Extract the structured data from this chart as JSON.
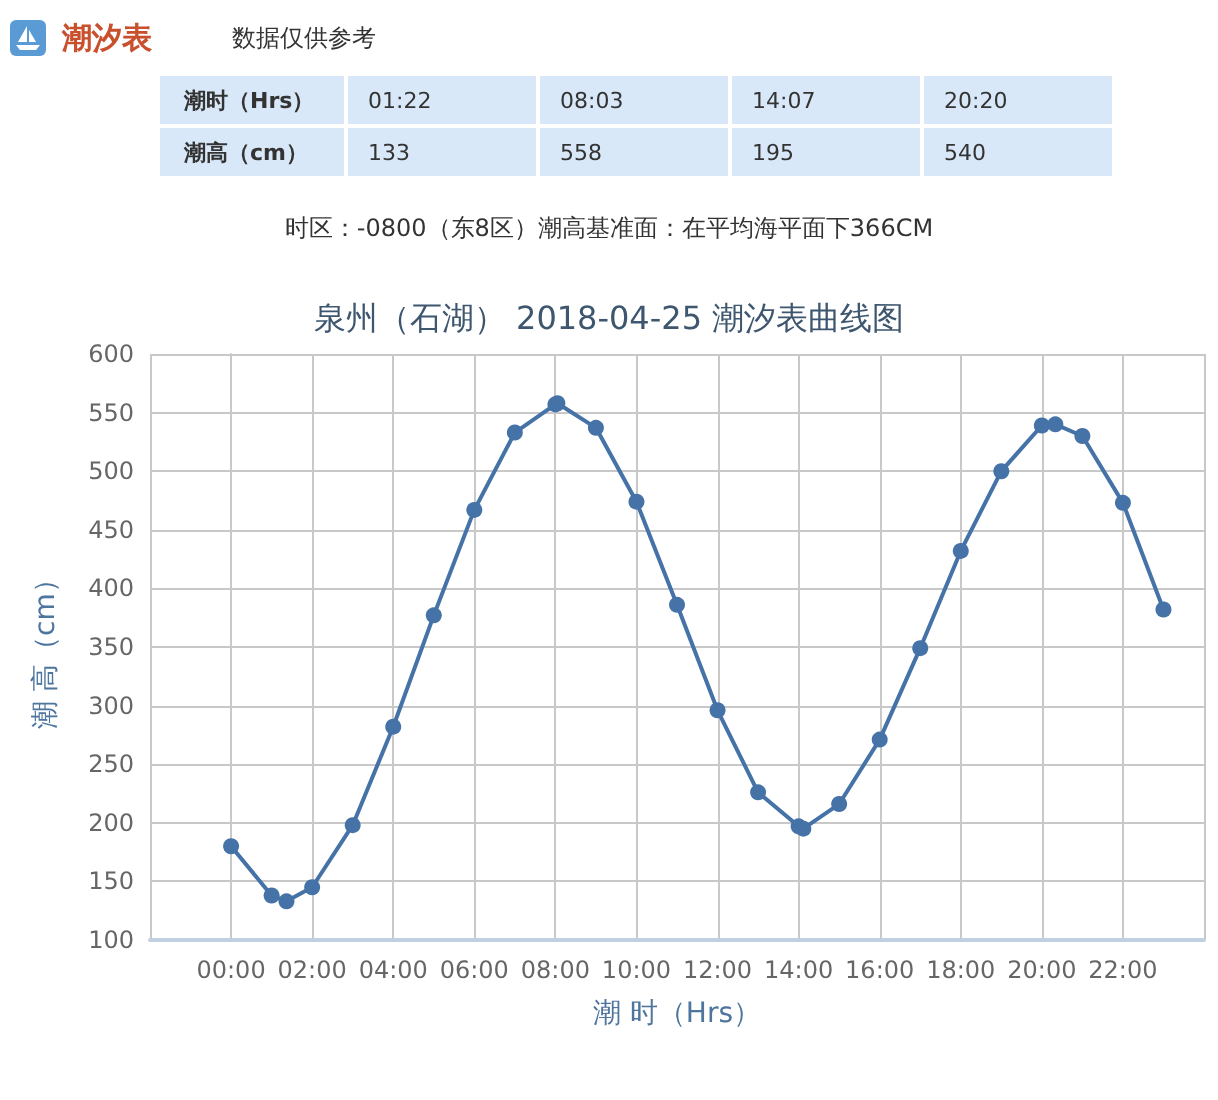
{
  "chart_data": {
    "type": "line",
    "title": "泉州（石湖） 2018-04-25 潮汐表曲线图",
    "xlabel": "潮 时（Hrs）",
    "ylabel": "潮 高（cm）",
    "annotations": [
      "潮汐表",
      "数据仅供参考",
      "潮时（Hrs）",
      "01:22",
      "08:03",
      "14:07",
      "20:20",
      "潮高（cm）",
      "133",
      "558",
      "195",
      "540",
      "时区：-0800（东8区）潮高基准面：在平均海平面下366CM"
    ],
    "x": [
      0,
      1,
      1.3667,
      2,
      3,
      4,
      5,
      6,
      7,
      8,
      8.05,
      9,
      10,
      11,
      12,
      13,
      14,
      14.1167,
      15,
      16,
      17,
      18,
      19,
      20,
      20.3333,
      21,
      22,
      23
    ],
    "values": [
      180,
      138,
      133,
      145,
      198,
      282,
      377,
      467,
      533,
      557,
      558,
      537,
      474,
      386,
      296,
      226,
      197,
      195,
      216,
      271,
      349,
      432,
      500,
      539,
      540,
      530,
      473,
      382
    ],
    "color": "#4572a7",
    "xlim": [
      -2,
      24
    ],
    "xticks": [
      {
        "value": -2,
        "label": null
      },
      {
        "value": 0,
        "label": "00:00"
      },
      {
        "value": 2,
        "label": "02:00"
      },
      {
        "value": 4,
        "label": "04:00"
      },
      {
        "value": 6,
        "label": "06:00"
      },
      {
        "value": 8,
        "label": "08:00"
      },
      {
        "value": 10,
        "label": "10:00"
      },
      {
        "value": 12,
        "label": "12:00"
      },
      {
        "value": 14,
        "label": "14:00"
      },
      {
        "value": 16,
        "label": "16:00"
      },
      {
        "value": 18,
        "label": "18:00"
      },
      {
        "value": 20,
        "label": "20:00"
      },
      {
        "value": 22,
        "label": "22:00"
      },
      {
        "value": 24,
        "label": null
      }
    ],
    "ylim": [
      100,
      600
    ],
    "yticks": [
      100,
      150,
      200,
      250,
      300,
      350,
      400,
      450,
      500,
      550,
      600
    ],
    "grid": true,
    "marker": "circle",
    "line_style": "solid"
  }
}
